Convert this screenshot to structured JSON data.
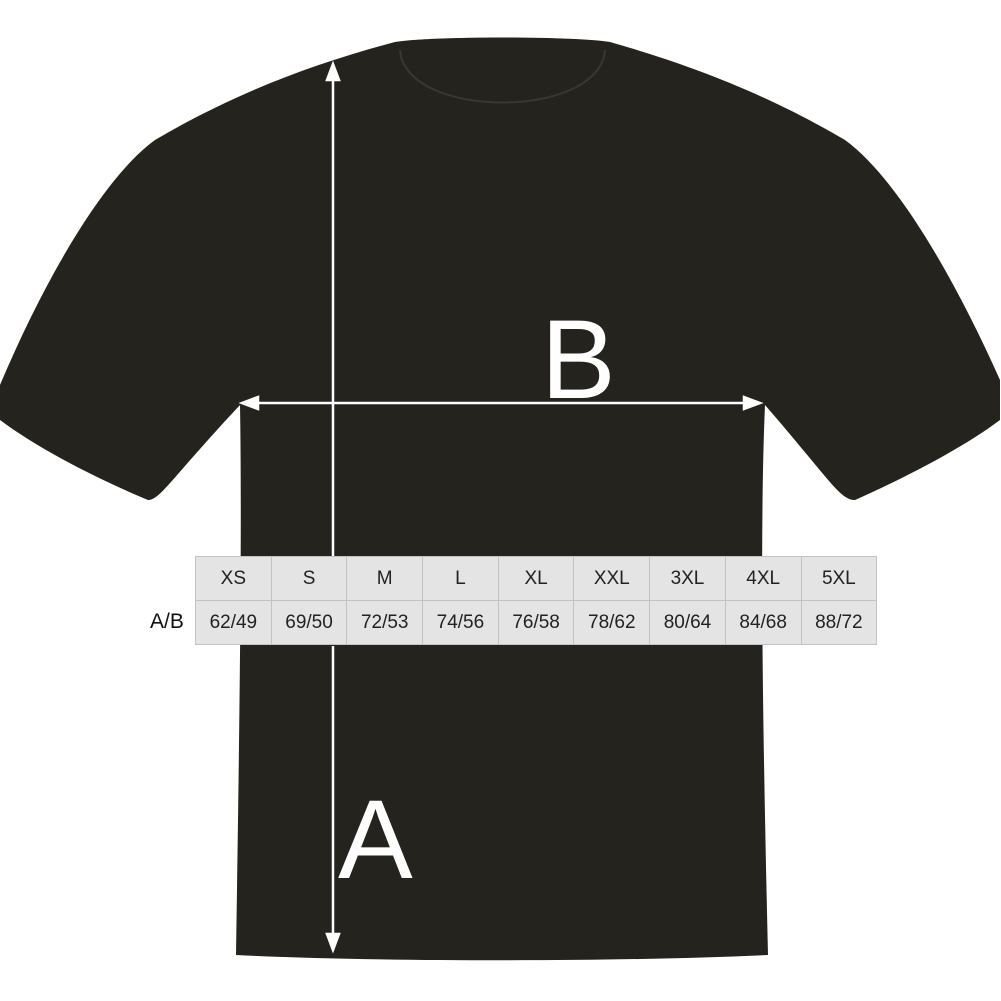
{
  "labels": {
    "length": "A",
    "width": "B"
  },
  "table": {
    "row_label": "A/B",
    "sizes": [
      "XS",
      "S",
      "M",
      "L",
      "XL",
      "XXL",
      "3XL",
      "4XL",
      "5XL"
    ],
    "values": [
      "62/49",
      "69/50",
      "72/53",
      "74/56",
      "76/58",
      "78/62",
      "80/64",
      "84/68",
      "88/72"
    ]
  },
  "colors": {
    "shirt": "#25231e",
    "table_bg": "#e4e4e4",
    "arrows": "#ffffff"
  }
}
